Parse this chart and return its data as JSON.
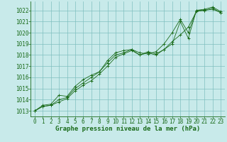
{
  "background_color": "#c8eaea",
  "grid_color": "#7fbfbf",
  "line_color": "#1a6b1a",
  "marker_color": "#1a6b1a",
  "xlabel": "Graphe pression niveau de la mer (hPa)",
  "xlabel_fontsize": 6.5,
  "tick_fontsize": 5.5,
  "ytick_fontsize": 5.5,
  "xlim": [
    -0.5,
    23.5
  ],
  "ylim": [
    1012.5,
    1022.8
  ],
  "yticks": [
    1013,
    1014,
    1015,
    1016,
    1017,
    1018,
    1019,
    1020,
    1021,
    1022
  ],
  "xticks": [
    0,
    1,
    2,
    3,
    4,
    5,
    6,
    7,
    8,
    9,
    10,
    11,
    12,
    13,
    14,
    15,
    16,
    17,
    18,
    19,
    20,
    21,
    22,
    23
  ],
  "series": [
    [
      1013.0,
      1013.4,
      1013.5,
      1014.0,
      1014.2,
      1015.0,
      1015.5,
      1016.0,
      1016.5,
      1017.3,
      1018.0,
      1018.2,
      1018.5,
      1018.0,
      1018.2,
      1018.0,
      1018.5,
      1019.0,
      1021.0,
      1019.5,
      1022.0,
      1022.0,
      1022.2,
      1021.8
    ],
    [
      1013.0,
      1013.5,
      1013.6,
      1014.4,
      1014.3,
      1015.2,
      1015.8,
      1016.2,
      1016.5,
      1017.5,
      1018.2,
      1018.4,
      1018.5,
      1018.2,
      1018.1,
      1018.3,
      1019.0,
      1020.0,
      1021.2,
      1020.0,
      1022.0,
      1022.1,
      1022.3,
      1021.9
    ],
    [
      1013.0,
      1013.4,
      1013.5,
      1013.8,
      1014.1,
      1014.8,
      1015.3,
      1015.7,
      1016.3,
      1017.0,
      1017.8,
      1018.1,
      1018.4,
      1018.0,
      1018.3,
      1018.1,
      1018.5,
      1019.2,
      1019.8,
      1020.5,
      1021.9,
      1022.0,
      1022.1,
      1021.8
    ]
  ]
}
